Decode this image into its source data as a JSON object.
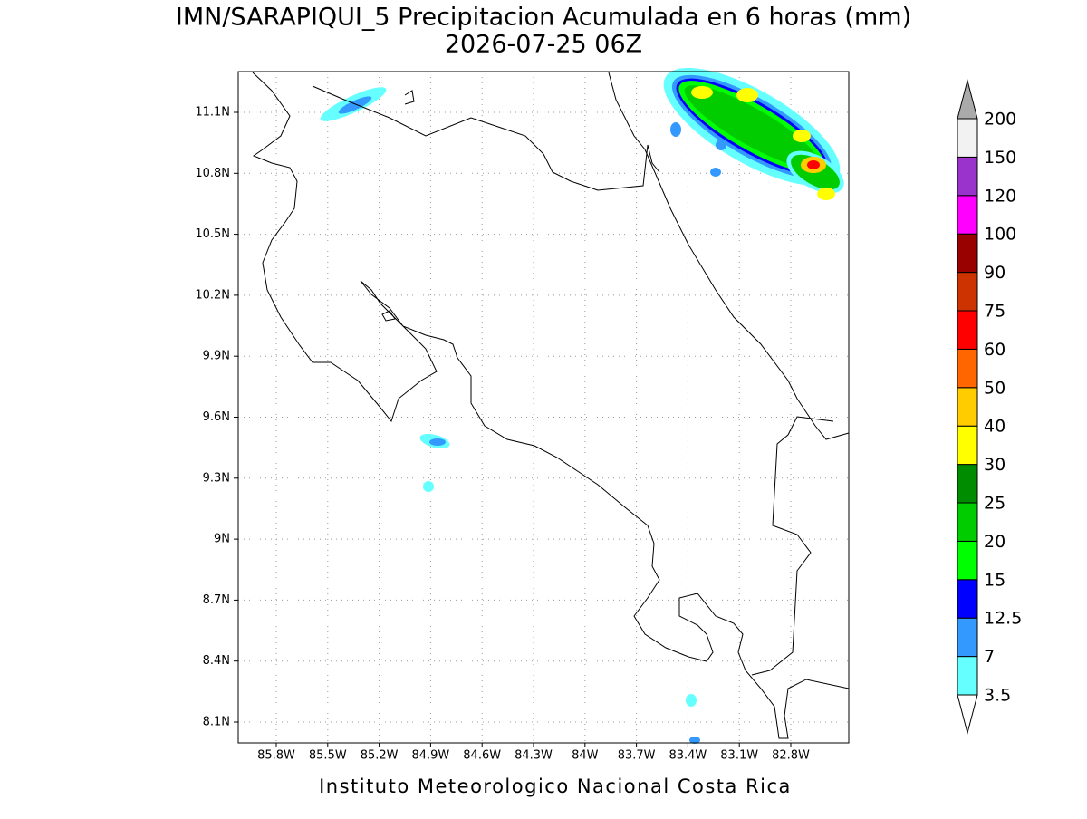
{
  "title": [
    "IMN/SARAPIQUI_5 Precipitacion Acumulada en 6 horas (mm)",
    "2026-07-25 06Z"
  ],
  "lat_labels": [
    "11.1N",
    "10.8N",
    "10.5N",
    "10.2N",
    "9.9N",
    "9.6N",
    "9.3N",
    "9N",
    "8.7N",
    "8.4N",
    "8.1N"
  ],
  "lon_labels": [
    "85.8W",
    "85.5W",
    "85.2W",
    "84.9W",
    "84.6W",
    "84.3W",
    "84W",
    "83.7W",
    "83.4W",
    "83.1W",
    "82.8W"
  ],
  "colorbar": {
    "levels": [
      3.5,
      7,
      12.5,
      15,
      20,
      25,
      30,
      40,
      50,
      60,
      75,
      90,
      100,
      120,
      150,
      200
    ],
    "colors": [
      "#ffffff",
      "#66ffff",
      "#3399ff",
      "#0000ff",
      "#00ff00",
      "#00cc00",
      "#008c00",
      "#ffff00",
      "#ffcc00",
      "#ff6600",
      "#ff0000",
      "#cc3300",
      "#990000",
      "#ff00ff",
      "#9933cc",
      "#f2f2f2",
      "#aaaaaa"
    ]
  },
  "credit": "Instituto Meteorologico Nacional Costa Rica"
}
